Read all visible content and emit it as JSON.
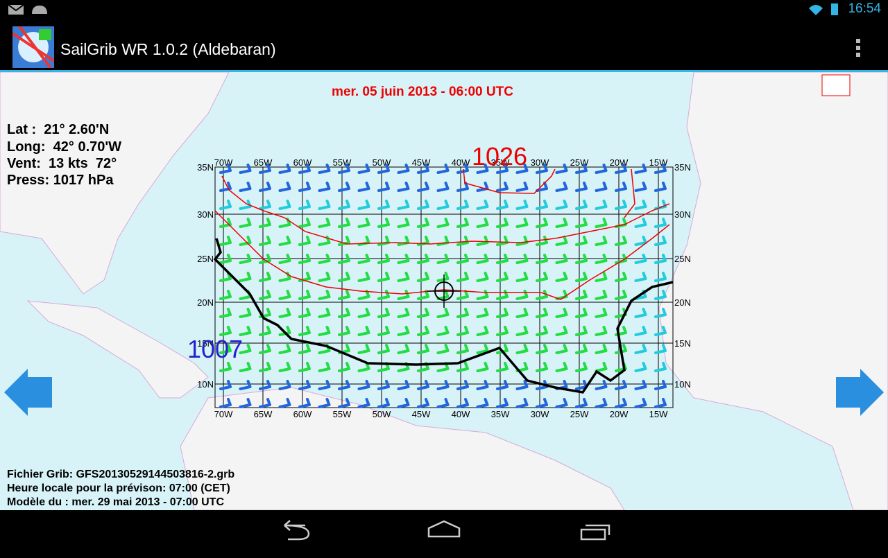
{
  "status_bar": {
    "time": "16:54"
  },
  "app_bar": {
    "title": "SailGrib WR 1.0.2 (Aldebaran)"
  },
  "map": {
    "forecast_time": "mer. 05 juin 2013 - 06:00 UTC",
    "info": {
      "lat": "Lat :  21° 2.60'N",
      "long": "Long:  42° 0.70'W",
      "wind": "Vent:  13 kts  72°",
      "pressure": "Press: 1017 hPa"
    },
    "grid": {
      "lon_labels": [
        "70W",
        "65W",
        "60W",
        "55W",
        "50W",
        "45W",
        "40W",
        "35W",
        "30W",
        "25W",
        "20W",
        "15W"
      ],
      "lat_labels": [
        "35N",
        "30N",
        "25N",
        "20N",
        "15N",
        "10N"
      ]
    },
    "isobar_labels": {
      "high": "1026",
      "low": "1007"
    },
    "footer": {
      "grib_file": "Fichier Grib: GFS20130529144503816-2.grb",
      "local_time": "Heure locale pour la prévison: 07:00 (CET)",
      "model": "Modèle du : mer. 29 mai 2013 - 07:00 UTC"
    }
  }
}
